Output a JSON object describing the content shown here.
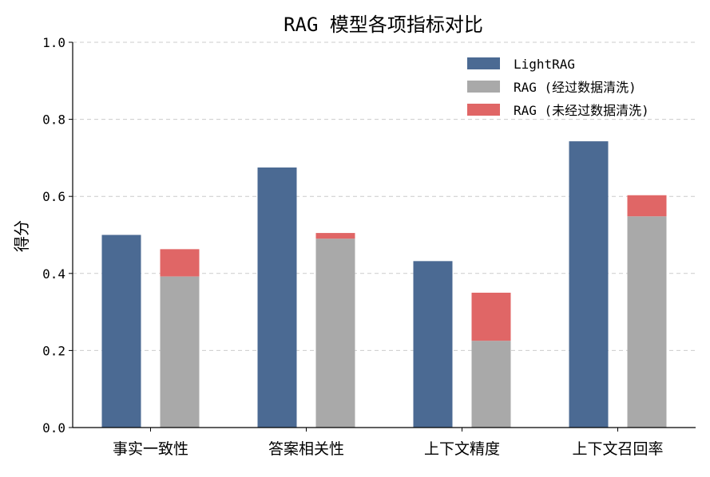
{
  "chart_data": {
    "type": "bar",
    "title": "RAG 模型各项指标对比",
    "xlabel": "",
    "ylabel": "得分",
    "ylim": [
      0,
      1.0
    ],
    "yticks": [
      "0.0",
      "0.2",
      "0.4",
      "0.6",
      "0.8",
      "1.0"
    ],
    "grid": "horizontal-dashed",
    "legend_position": "top-right",
    "categories": [
      "事实一致性",
      "答案相关性",
      "上下文精度",
      "上下文召回率"
    ],
    "series": [
      {
        "name": "LightRAG",
        "color": "#4b6a93",
        "group": "left",
        "values": [
          0.5,
          0.675,
          0.432,
          0.743
        ]
      },
      {
        "name": "RAG (经过数据清洗)",
        "color": "#a9a9a9",
        "group": "right",
        "values": [
          0.392,
          0.49,
          0.225,
          0.548
        ]
      },
      {
        "name": "RAG (未经过数据清洗)",
        "color": "#e06666",
        "group": "right-stacked",
        "stacked_on": "RAG (经过数据清洗)",
        "values": [
          0.463,
          0.505,
          0.35,
          0.603
        ]
      }
    ]
  }
}
